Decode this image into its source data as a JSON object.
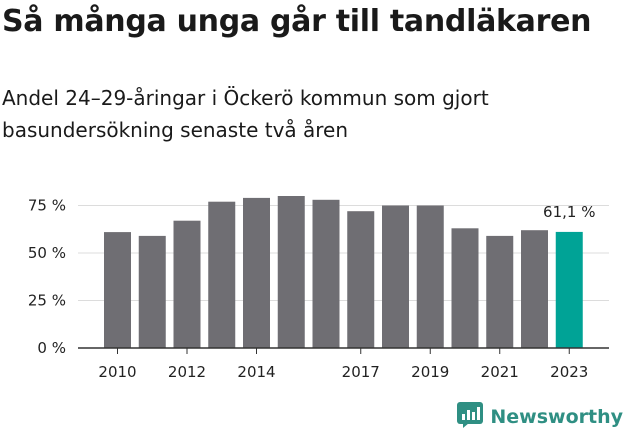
{
  "title": "Så många unga går till tandläkaren",
  "subtitle": "Andel 24–29-åringar i Öckerö kommun som gjort basundersökning senaste två åren",
  "brand": {
    "name": "Newsworthy",
    "icon": "newsworthy-logo-icon",
    "color": "#2f8f83"
  },
  "colors": {
    "bar": "#6f6e73",
    "highlight": "#00a396",
    "grid": "#dcdcdc",
    "axis": "#333333"
  },
  "chart_data": {
    "type": "bar",
    "x": [
      2010,
      2011,
      2012,
      2013,
      2014,
      2015,
      2016,
      2017,
      2018,
      2019,
      2020,
      2021,
      2022,
      2023
    ],
    "values": [
      61,
      59,
      67,
      77,
      79,
      80,
      78,
      72,
      75,
      75,
      63,
      59,
      62,
      61.1
    ],
    "x_tick_labels": [
      "2010",
      "2012",
      "2014",
      "2017",
      "2019",
      "2021",
      "2023"
    ],
    "y_ticks": [
      0,
      25,
      50,
      75
    ],
    "y_tick_labels": [
      "0 %",
      "25 %",
      "50 %",
      "75 %"
    ],
    "ylim": [
      0,
      80
    ],
    "highlight_index": 13,
    "annotation": "61,1 %",
    "xlabel": "",
    "ylabel": "",
    "grid": true,
    "legend": "none"
  }
}
